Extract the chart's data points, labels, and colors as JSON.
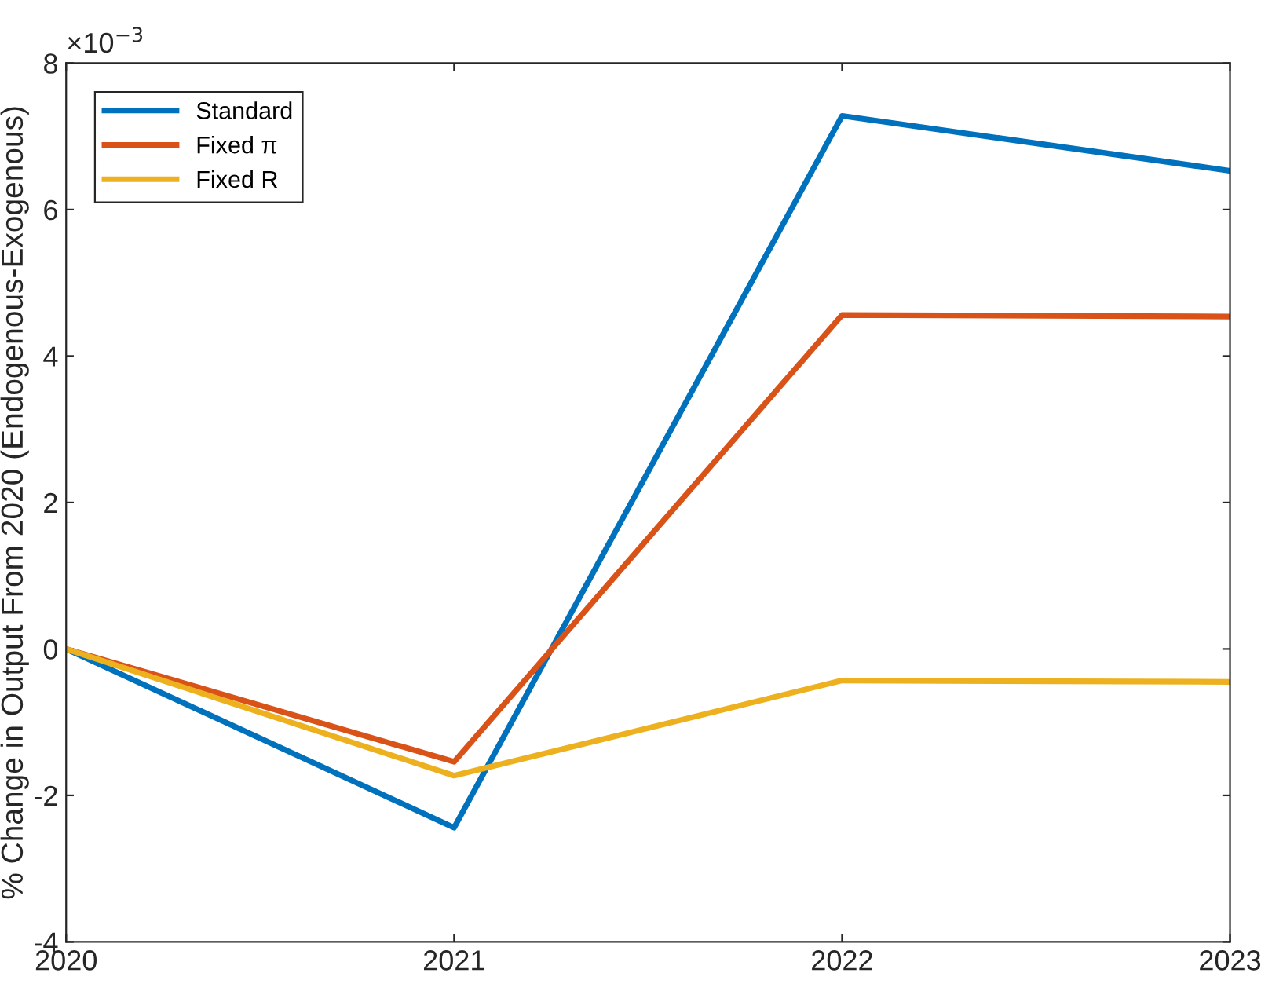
{
  "chart_data": {
    "type": "line",
    "ylabel": "% Change in Output From 2020 (Endogenous-Exogenous)",
    "x": [
      2020,
      2021,
      2022,
      2023
    ],
    "series": [
      {
        "name": "Standard",
        "color": "#0072bd",
        "values": [
          0,
          -2.44,
          7.28,
          6.53
        ]
      },
      {
        "name": "Fixed π",
        "color": "#d95319",
        "values": [
          0,
          -1.54,
          4.56,
          4.54
        ]
      },
      {
        "name": "Fixed R",
        "color": "#edb120",
        "values": [
          0,
          -1.73,
          -0.43,
          -0.45
        ]
      }
    ],
    "xlim": [
      2020,
      2023
    ],
    "xticks": [
      2020,
      2021,
      2022,
      2023
    ],
    "ylim": [
      -4,
      8
    ],
    "yticks": [
      -4,
      -2,
      0,
      2,
      4,
      6,
      8
    ],
    "annotations": [
      "×10$^{−3}$"
    ],
    "legend": "top left",
    "grid": false,
    "marker": "none",
    "line_style": "solid"
  }
}
